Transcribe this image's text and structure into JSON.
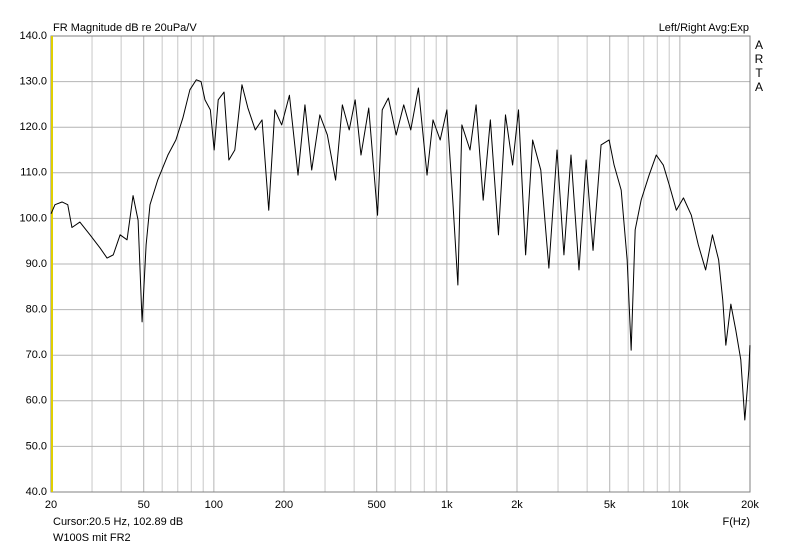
{
  "chart_data": {
    "type": "line",
    "title": "FR Magnitude dB re 20uPa/V",
    "subtitle": "Left/Right  Avg:Exp",
    "side_label": "ARTA",
    "cursor_label": "Cursor:20.5 Hz, 102.89 dB",
    "footer": "W100S mit FR2",
    "xlabel": "F(Hz)",
    "log_x": true,
    "grid": true,
    "xlim": [
      20,
      20000
    ],
    "ylim": [
      40,
      140
    ],
    "xticks": [
      20,
      50,
      100,
      200,
      500,
      {
        "value": 1000,
        "label": "1k"
      },
      {
        "value": 2000,
        "label": "2k"
      },
      {
        "value": 5000,
        "label": "5k"
      },
      {
        "value": 10000,
        "label": "10k"
      },
      {
        "value": 20000,
        "label": "20k"
      }
    ],
    "xminor": [
      30,
      40,
      60,
      70,
      80,
      90,
      300,
      400,
      600,
      700,
      800,
      900,
      3000,
      4000,
      6000,
      7000,
      8000,
      9000
    ],
    "yticks": [
      {
        "value": 40,
        "label": "40.0"
      },
      {
        "value": 50,
        "label": "50.0"
      },
      {
        "value": 60,
        "label": "60.0"
      },
      {
        "value": 70,
        "label": "70.0"
      },
      {
        "value": 80,
        "label": "80.0"
      },
      {
        "value": 90,
        "label": "90.0"
      },
      {
        "value": 100,
        "label": "100.0"
      },
      {
        "value": 110,
        "label": "110.0"
      },
      {
        "value": 120,
        "label": "120.0"
      },
      {
        "value": 130,
        "label": "130.0"
      },
      {
        "value": 140,
        "label": "140.0"
      }
    ],
    "x": [
      20,
      20.8,
      22.3,
      23.6,
      24.6,
      26.6,
      29.4,
      32.5,
      34.8,
      37,
      39.6,
      42.4,
      45,
      47.3,
      49.2,
      51.2,
      53.2,
      57.4,
      63.5,
      68.7,
      73.6,
      78.9,
      84.1,
      88.1,
      91.6,
      96.6,
      100.3,
      104.4,
      110.6,
      116,
      123,
      132,
      140,
      150.6,
      161,
      172,
      182.7,
      195.5,
      211,
      229.7,
      246,
      263,
      285,
      307,
      333,
      356,
      381,
      404,
      428,
      462,
      504,
      528,
      561,
      606,
      653,
      700,
      755,
      822,
      872,
      936,
      1000,
      1060,
      1115,
      1160,
      1257,
      1335,
      1432,
      1537,
      1665,
      1785,
      1915,
      2030,
      2178,
      2334,
      2530,
      2740,
      2970,
      3180,
      3410,
      3690,
      3960,
      4240,
      4590,
      4970,
      5220,
      5600,
      5940,
      6180,
      6430,
      6820,
      7380,
      7920,
      8490,
      9010,
      9660,
      10360,
      11200,
      12000,
      12900,
      13800,
      14670,
      15280,
      15750,
      16550,
      17380,
      18260,
      19000,
      19770,
      19990
    ],
    "series": [
      {
        "name": "W100S mit FR2",
        "color": "#000000",
        "values": [
          101,
          103,
          103.6,
          103,
          98,
          99.2,
          96.4,
          93.5,
          91.3,
          92,
          96.4,
          95.3,
          105,
          99.6,
          77.3,
          94.2,
          103,
          108.4,
          113.9,
          117.2,
          122,
          128.2,
          130.4,
          130,
          126,
          123.8,
          115,
          126,
          127.7,
          112.8,
          115,
          129.3,
          124.2,
          119.4,
          121.6,
          101.8,
          123.8,
          120.5,
          127,
          109.5,
          124.9,
          110.6,
          122.7,
          118.3,
          108.4,
          124.9,
          119.4,
          126,
          113.9,
          124.2,
          100.7,
          123.8,
          126.4,
          118.3,
          124.9,
          119.4,
          128.6,
          109.5,
          121.6,
          117.2,
          123.8,
          104,
          85.4,
          120.5,
          115,
          124.9,
          104,
          121.6,
          96.4,
          122.7,
          111.7,
          123.8,
          92,
          117.2,
          110.6,
          89.1,
          115,
          92,
          113.9,
          88.7,
          112.8,
          93,
          116.1,
          117.2,
          111.7,
          106.2,
          90.9,
          71.1,
          97.5,
          104,
          109.5,
          113.9,
          111.7,
          107.3,
          101.8,
          104.5,
          100.7,
          94.2,
          88.7,
          96.4,
          90.9,
          82.1,
          72.2,
          81.2,
          75.5,
          69,
          55.8,
          66.8,
          72.2
        ]
      }
    ]
  }
}
